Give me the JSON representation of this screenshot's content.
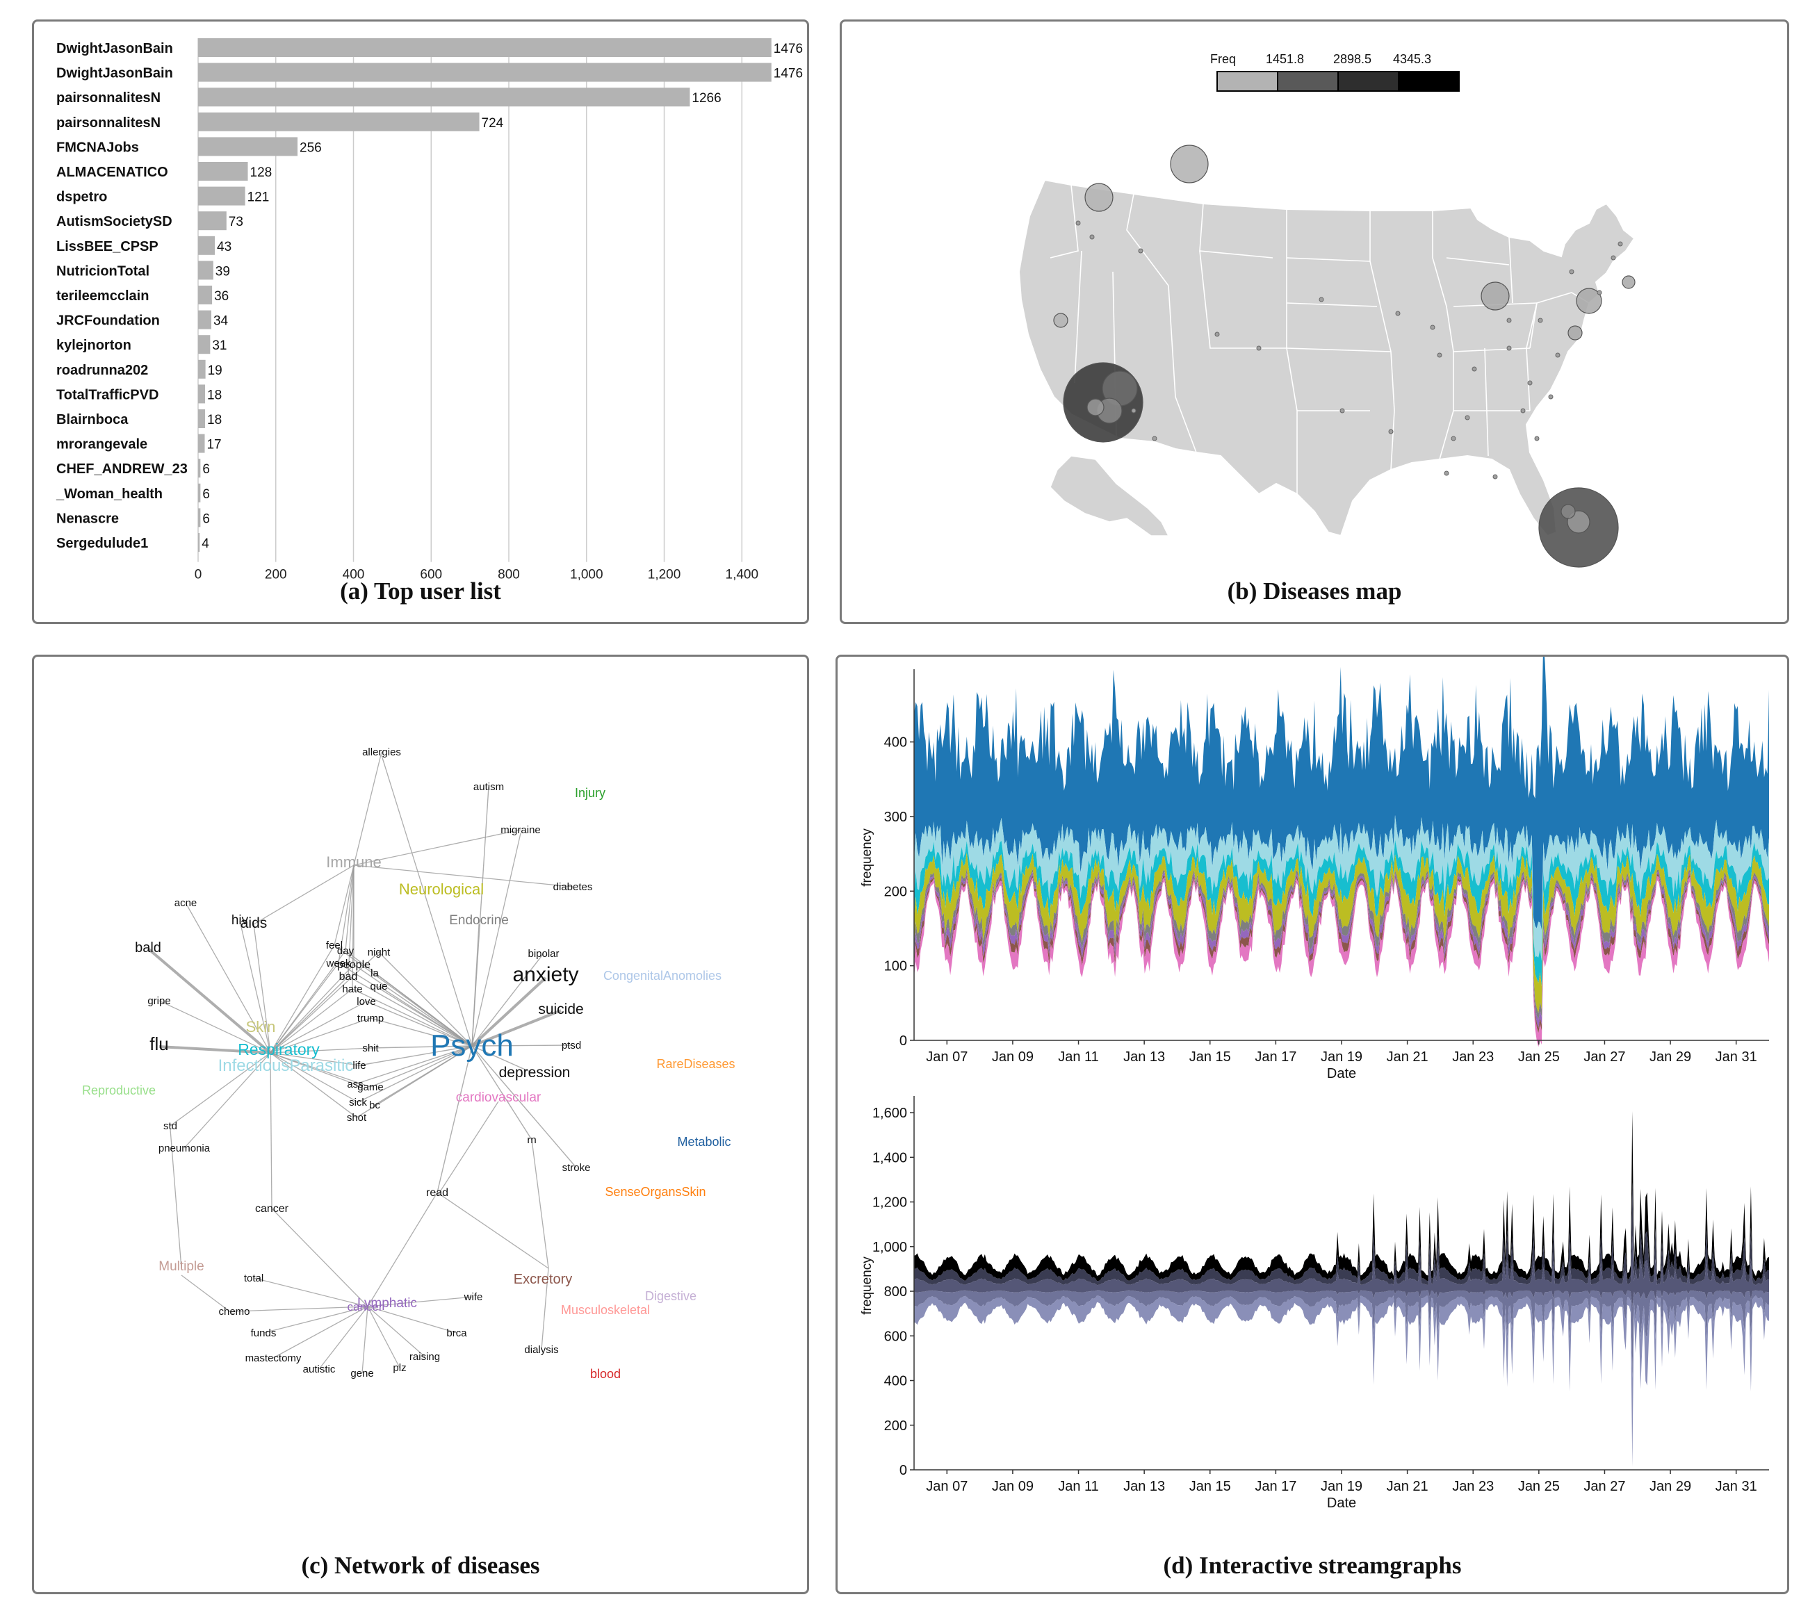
{
  "panels": {
    "a_caption": "(a) Top user list",
    "b_caption": "(b) Diseases map",
    "c_caption": "(c) Network of diseases",
    "d_caption": "(d) Interactive streamgraphs"
  },
  "chart_data": [
    {
      "type": "bar",
      "orientation": "horizontal",
      "categories": [
        "DwightJasonBain",
        "DwightJasonBain",
        "pairsonnalitesN",
        "pairsonnalitesN",
        "FMCNAJobs",
        "ALMACENATICO",
        "dspetro",
        "AutismSocietySD",
        "LissBEE_CPSP",
        "NutricionTotal",
        "terileemcclain",
        "JRCFoundation",
        "kylejnorton",
        "roadrunna202",
        "TotalTrafficPVD",
        "Blairnboca",
        "mrorangevale",
        "CHEF_ANDREW_23",
        "_Woman_health",
        "Nenascre",
        "Sergedulude1"
      ],
      "values": [
        1476,
        1476,
        1266,
        724,
        256,
        128,
        121,
        73,
        43,
        39,
        36,
        34,
        31,
        19,
        18,
        18,
        17,
        6,
        6,
        6,
        4
      ],
      "value_labels": [
        "1476",
        "1476",
        "1266",
        "724",
        "256",
        "128",
        "121",
        "73",
        "43",
        "39",
        "36",
        "34",
        "31",
        "19",
        "18",
        "18",
        "17",
        "6",
        "6",
        "6",
        "4"
      ],
      "xticks": [
        0,
        200,
        400,
        600,
        800,
        1000,
        1200,
        1400
      ],
      "xtick_labels": [
        "0",
        "200",
        "400",
        "600",
        "800",
        "1,000",
        "1,200",
        "1,400"
      ],
      "xlim": [
        0,
        1480
      ],
      "grid": true,
      "bar_color": "#b3b3b3"
    },
    {
      "type": "bubble-map",
      "legend": {
        "title": "Freq",
        "labels": [
          "1451.8",
          "2898.5",
          "4345.3"
        ],
        "colors": [
          "#b3b3b3",
          "#595959",
          "#2e2e2e",
          "#000000"
        ]
      }
    },
    {
      "type": "network",
      "categories": [
        {
          "label": "Psych",
          "color": "#1f77b4"
        },
        {
          "label": "Immune",
          "color": "#a6a6a6"
        },
        {
          "label": "Neurological",
          "color": "#bcbd22"
        },
        {
          "label": "Endocrine",
          "color": "#7f7f7f"
        },
        {
          "label": "Skin",
          "color": "#c7c77a"
        },
        {
          "label": "Respiratory",
          "color": "#17becf"
        },
        {
          "label": "InfectiousParasitic",
          "color": "#9edae5"
        },
        {
          "label": "cardiovascular",
          "color": "#e377c2"
        },
        {
          "label": "Excretory",
          "color": "#8c564b"
        },
        {
          "label": "Lymphatic",
          "color": "#9467bd"
        },
        {
          "label": "cancer",
          "color": "#9467bd"
        },
        {
          "label": "Multiple",
          "color": "#c49c94"
        },
        {
          "label": "Injury",
          "color": "#2ca02c"
        },
        {
          "label": "CongenitalAnomolies",
          "color": "#aec7e8"
        },
        {
          "label": "RareDiseases",
          "color": "#ff9933"
        },
        {
          "label": "Reproductive",
          "color": "#98df8a"
        },
        {
          "label": "Metabolic",
          "color": "#1f5f9f"
        },
        {
          "label": "SenseOrgansSkin",
          "color": "#ff7f0e"
        },
        {
          "label": "Digestive",
          "color": "#c5b0d5"
        },
        {
          "label": "Musculoskeletal",
          "color": "#ff9896"
        },
        {
          "label": "blood",
          "color": "#d62728"
        }
      ],
      "terms": [
        "allergies",
        "autism",
        "migraine",
        "diabetes",
        "acne",
        "hiv",
        "aids",
        "bald",
        "bipolar",
        "anxiety",
        "suicide",
        "gripe",
        "flu",
        "ptsd",
        "depression",
        "std",
        "pneumonia",
        "rn",
        "stroke",
        "cancer",
        "read",
        "feel",
        "day",
        "night",
        "week",
        "people",
        "bad",
        "la",
        "hate",
        "que",
        "love",
        "trump",
        "shit",
        "life",
        "ass",
        "game",
        "sick",
        "bc",
        "shot",
        "total",
        "wife",
        "chemo",
        "funds",
        "brca",
        "mastectomy",
        "raising",
        "autistic",
        "gene",
        "plz",
        "dialysis"
      ]
    },
    {
      "type": "area",
      "subtype": "streamgraph",
      "ylabel": "frequency",
      "xlabel": "Date",
      "yticks": [
        0,
        100,
        200,
        300,
        400
      ],
      "ylim": [
        0,
        490
      ],
      "x_range": [
        "2017-01-06",
        "2017-02-01"
      ],
      "x_tick_labels": [
        "Jan 07",
        "Jan 09",
        "Jan 11",
        "Jan 13",
        "Jan 15",
        "Jan 17",
        "Jan 19",
        "Jan 21",
        "Jan 23",
        "Jan 25",
        "Jan 27",
        "Jan 29",
        "Jan 31"
      ],
      "layer_colors": [
        "#e377c2",
        "#8c564b",
        "#9467bd",
        "#7f7f7f",
        "#bcbd22",
        "#17becf",
        "#9edae5",
        "#1f77b4"
      ]
    },
    {
      "type": "area",
      "subtype": "streamgraph",
      "ylabel": "frequency",
      "xlabel": "Date",
      "yticks": [
        0,
        200,
        400,
        600,
        800,
        1000,
        1200,
        1400,
        1600
      ],
      "ytick_labels": [
        "0",
        "200",
        "400",
        "600",
        "800",
        "1,000",
        "1,200",
        "1,400",
        "1,600"
      ],
      "ylim": [
        0,
        1650
      ],
      "x_range": [
        "2017-01-06",
        "2017-02-01"
      ],
      "x_tick_labels": [
        "Jan 07",
        "Jan 09",
        "Jan 11",
        "Jan 13",
        "Jan 15",
        "Jan 17",
        "Jan 19",
        "Jan 21",
        "Jan 23",
        "Jan 25",
        "Jan 27",
        "Jan 29",
        "Jan 31"
      ],
      "layer_colors": [
        "#8a8fb8",
        "#6f7399",
        "#555777",
        "#3a3c52",
        "#000000"
      ]
    }
  ]
}
